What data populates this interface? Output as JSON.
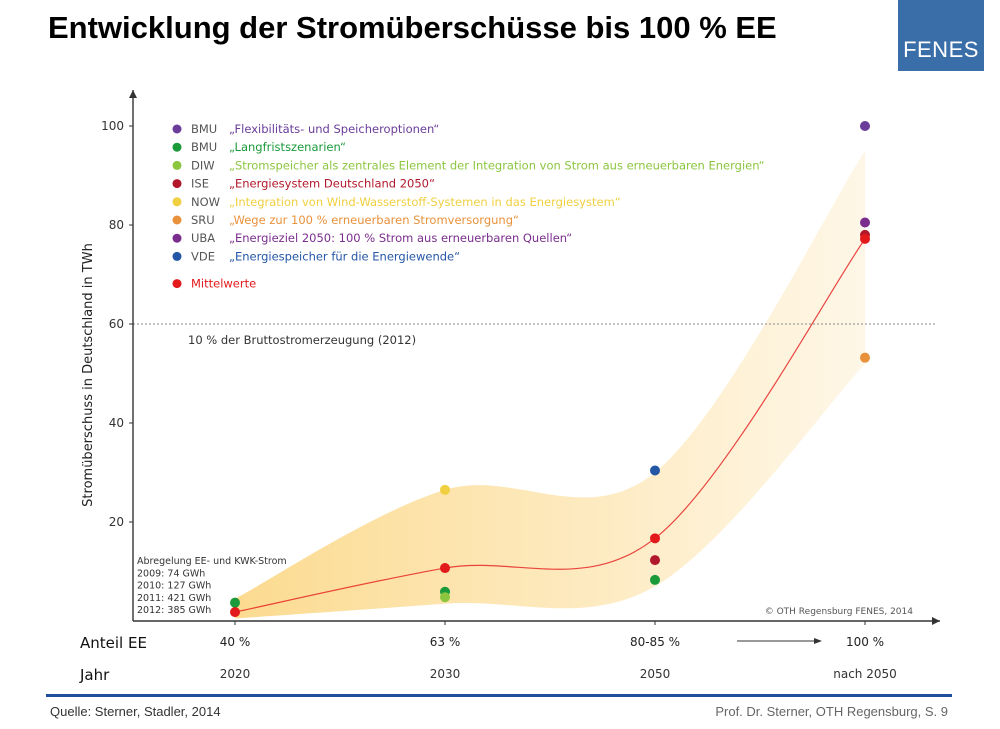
{
  "slide": {
    "title": "Entwicklung der Stromüberschüsse bis 100 % EE",
    "logo": "FENES",
    "source": "Quelle: Sterner, Stadler, 2014",
    "credit": "Prof. Dr. Sterner, OTH Regensburg, S. 9"
  },
  "chart_data": {
    "type": "scatter",
    "ylabel": "Stromüberschuss in Deutschland in TWh",
    "ylim": [
      0,
      100
    ],
    "yticks": [
      20,
      40,
      60,
      80,
      100
    ],
    "x_row1_label": "Anteil EE",
    "x_row2_label": "Jahr",
    "categories": [
      "40 %",
      "63 %",
      "80-85 %",
      "100 %"
    ],
    "years": [
      "2020",
      "2030",
      "2050",
      "nach 2050"
    ],
    "reference_line": {
      "value": 60,
      "label": "10 % der Bruttostromerzeugung (2012)"
    },
    "annotation_lines": [
      "Abregelung EE- und KWK-Strom",
      "2009: 74 GWh",
      "2010: 127 GWh",
      "2011: 421 GWh",
      "2012: 385 GWh"
    ],
    "copyright": "© OTH Regensburg FENES, 2014",
    "legend": [
      {
        "abbr": "BMU",
        "name": "„Flexibilitäts- und Speicheroptionen“",
        "color": "#6a3d9a"
      },
      {
        "abbr": "BMU",
        "name": "„Langfristszenarien“",
        "color": "#1a9a3a"
      },
      {
        "abbr": "DIW",
        "name": "„Stromspeicher als zentrales Element der Integration von Strom aus erneuerbaren Energien“",
        "color": "#8cc63f"
      },
      {
        "abbr": "ISE",
        "name": "„Energiesystem Deutschland 2050“",
        "color": "#b2182b"
      },
      {
        "abbr": "NOW",
        "name": "„Integration von Wind-Wasserstoff-Systemen in das Energiesystem“",
        "color": "#f0d040"
      },
      {
        "abbr": "SRU",
        "name": "„Wege zur 100 % erneuerbaren Stromversorgung“",
        "color": "#e8913a"
      },
      {
        "abbr": "UBA",
        "name": "„Energieziel 2050: 100 % Strom aus erneuerbaren Quellen“",
        "color": "#7b2d8e"
      },
      {
        "abbr": "VDE",
        "name": "„Energiespeicher für die Energiewende“",
        "color": "#2456a6"
      },
      {
        "abbr": "",
        "name": "Mittelwerte",
        "color": "#e31a1c"
      }
    ],
    "points": [
      {
        "series": "BMU Langfristszenarien",
        "x": "40 %",
        "y": 3.7,
        "color": "#1a9a3a"
      },
      {
        "series": "Mittelwerte",
        "x": "40 %",
        "y": 1.8,
        "color": "#e31a1c"
      },
      {
        "series": "NOW",
        "x": "63 %",
        "y": 26.5,
        "color": "#f0d040"
      },
      {
        "series": "Mittelwerte",
        "x": "63 %",
        "y": 10.7,
        "color": "#e31a1c"
      },
      {
        "series": "BMU Langfristszenarien",
        "x": "63 %",
        "y": 5.9,
        "color": "#1a9a3a"
      },
      {
        "series": "DIW",
        "x": "63 %",
        "y": 4.8,
        "color": "#8cc63f"
      },
      {
        "series": "VDE",
        "x": "80-85 %",
        "y": 30.4,
        "color": "#2456a6"
      },
      {
        "series": "Mittelwerte",
        "x": "80-85 %",
        "y": 16.7,
        "color": "#e31a1c"
      },
      {
        "series": "ISE",
        "x": "80-85 %",
        "y": 12.3,
        "color": "#b2182b"
      },
      {
        "series": "BMU Langfristszenarien",
        "x": "80-85 %",
        "y": 8.3,
        "color": "#1a9a3a"
      },
      {
        "series": "BMU Flexibilitäts- und Speicheroptionen",
        "x": "100 %",
        "y": 100,
        "color": "#6a3d9a"
      },
      {
        "series": "UBA",
        "x": "100 %",
        "y": 80.5,
        "color": "#7b2d8e"
      },
      {
        "series": "ISE",
        "x": "100 %",
        "y": 78.0,
        "color": "#b2182b"
      },
      {
        "series": "Mittelwerte",
        "x": "100 %",
        "y": 77.2,
        "color": "#e31a1c"
      },
      {
        "series": "SRU",
        "x": "100 %",
        "y": 53.2,
        "color": "#e8913a"
      }
    ],
    "mean_curve": [
      1.8,
      10.7,
      16.7,
      77.2
    ],
    "band_upper": [
      4.5,
      26.5,
      30.0,
      95.0
    ],
    "band_lower": [
      0.5,
      3.5,
      7.0,
      52.0
    ],
    "colors": {
      "band": "#fde7b0",
      "curve": "#e31a1c",
      "axis": "#333333"
    }
  }
}
